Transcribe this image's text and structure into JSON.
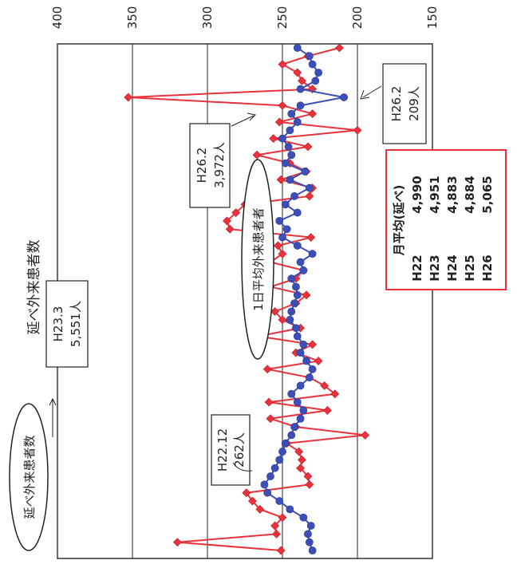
{
  "chart_data": {
    "type": "line",
    "orientation": "rotated-90",
    "title": "",
    "series": [
      {
        "name": "延べ外来患者数",
        "axis": "left",
        "color": "#e8323c",
        "values": [
          4990,
          4300,
          4960,
          4950,
          5000,
          4850,
          4800,
          4760,
          5180,
          5170,
          5120,
          5130,
          5110,
          5030,
          5551,
          5090,
          4920,
          5300,
          4910,
          5350,
          5280,
          5180,
          4900,
          5240,
          5090,
          5200,
          4840,
          5120,
          5000,
          4950,
          5090,
          5160,
          4920,
          5090,
          5140,
          4920,
          5000,
          4970,
          5190,
          4650,
          4630,
          4690,
          4750,
          5180,
          5200,
          4990,
          5160,
          5050,
          4830,
          5170,
          4940,
          5500,
          4980,
          5200,
          5000,
          3972,
          5200,
          5130,
          5100,
          5000,
          5170,
          5380
        ]
      },
      {
        "name": "1日平均外来患者者",
        "axis": "right",
        "color": "#3c4fb8",
        "values": [
          230,
          232,
          233,
          231,
          236,
          245,
          252,
          260,
          262,
          258,
          255,
          252,
          250,
          248,
          244,
          242,
          238,
          236,
          240,
          244,
          238,
          232,
          230,
          234,
          238,
          236,
          240,
          241,
          245,
          244,
          242,
          240,
          241,
          244,
          236,
          238,
          230,
          240,
          250,
          247,
          252,
          240,
          248,
          242,
          232,
          245,
          235,
          248,
          244,
          246,
          250,
          245,
          240,
          244,
          238,
          209,
          238,
          228,
          226,
          230,
          232,
          240
        ]
      }
    ],
    "left_axis": {
      "min": 3500,
      "max": 6000,
      "ticks": [
        4000,
        4500,
        5000,
        5500
      ],
      "tick_labels": [
        "",
        "",
        "",
        ""
      ]
    },
    "right_axis": {
      "min": 150,
      "max": 400,
      "ticks": [
        150,
        200,
        250,
        300,
        350,
        400
      ],
      "tick_labels": [
        "150",
        "200",
        "250",
        "300",
        "350",
        "400"
      ]
    },
    "grid": true,
    "annotations": {
      "ann1": [
        "H23.3",
        "5,551人"
      ],
      "ann2": [
        "H22.12",
        "262人"
      ],
      "ann3": [
        "H26.2",
        "3,972人"
      ],
      "ann4": [
        "H26.2",
        "209人"
      ]
    },
    "labels": {
      "total_bubble": "延べ外来患者数",
      "daily_bubble": "1日平均外来患者者",
      "total_title": "延べ外来患者数"
    },
    "avg_box": {
      "header": "月平均(延べ)",
      "rows": [
        {
          "year": "H22",
          "value": "4,990",
          "color": "#e8323c"
        },
        {
          "year": "H23",
          "value": "4,951",
          "color": "#e8323c"
        },
        {
          "year": "H24",
          "value": "4,883",
          "color": "#e8323c"
        },
        {
          "year": "H25",
          "value": "4,884",
          "color": "#e8323c"
        },
        {
          "year": "H26",
          "value": "5,065",
          "color": "#222222"
        }
      ]
    }
  }
}
